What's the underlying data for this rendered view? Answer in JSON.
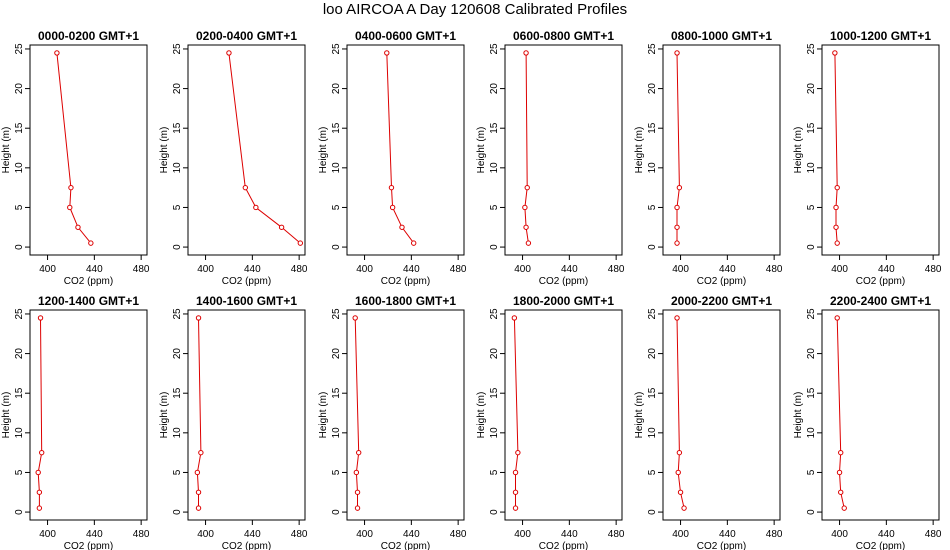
{
  "figure": {
    "title": "loo AIRCOA A  Day 120608  Calibrated Profiles"
  },
  "chart_data": [
    {
      "type": "line",
      "title": "0000-0200 GMT+1",
      "xlabel": "CO2 (ppm)",
      "ylabel": "Height (m)",
      "xlim": [
        385,
        485
      ],
      "ylim": [
        -1,
        25.5
      ],
      "xticks": [
        400,
        440,
        480
      ],
      "yticks": [
        0,
        5,
        10,
        15,
        20,
        25
      ],
      "grid": false,
      "color": "#dd0000",
      "series": [
        {
          "x": [
            437,
            426,
            419,
            420,
            408
          ],
          "y": [
            0.5,
            2.5,
            5,
            7.5,
            24.5
          ]
        }
      ]
    },
    {
      "type": "line",
      "title": "0200-0400 GMT+1",
      "xlabel": "CO2 (ppm)",
      "ylabel": "Height (m)",
      "xlim": [
        385,
        485
      ],
      "ylim": [
        -1,
        25.5
      ],
      "xticks": [
        400,
        440,
        480
      ],
      "yticks": [
        0,
        5,
        10,
        15,
        20,
        25
      ],
      "grid": false,
      "color": "#dd0000",
      "series": [
        {
          "x": [
            481,
            465,
            443,
            434,
            420
          ],
          "y": [
            0.5,
            2.5,
            5,
            7.5,
            24.5
          ]
        }
      ]
    },
    {
      "type": "line",
      "title": "0400-0600 GMT+1",
      "xlabel": "CO2 (ppm)",
      "ylabel": "Height (m)",
      "xlim": [
        385,
        485
      ],
      "ylim": [
        -1,
        25.5
      ],
      "xticks": [
        400,
        440,
        480
      ],
      "yticks": [
        0,
        5,
        10,
        15,
        20,
        25
      ],
      "grid": false,
      "color": "#dd0000",
      "series": [
        {
          "x": [
            442,
            432,
            424,
            423,
            419
          ],
          "y": [
            0.5,
            2.5,
            5,
            7.5,
            24.5
          ]
        }
      ]
    },
    {
      "type": "line",
      "title": "0600-0800 GMT+1",
      "xlabel": "CO2 (ppm)",
      "ylabel": "Height (m)",
      "xlim": [
        385,
        485
      ],
      "ylim": [
        -1,
        25.5
      ],
      "xticks": [
        400,
        440,
        480
      ],
      "yticks": [
        0,
        5,
        10,
        15,
        20,
        25
      ],
      "grid": false,
      "color": "#dd0000",
      "series": [
        {
          "x": [
            405,
            403,
            402,
            404,
            403
          ],
          "y": [
            0.5,
            2.5,
            5,
            7.5,
            24.5
          ]
        }
      ]
    },
    {
      "type": "line",
      "title": "0800-1000 GMT+1",
      "xlabel": "CO2 (ppm)",
      "ylabel": "Height (m)",
      "xlim": [
        385,
        485
      ],
      "ylim": [
        -1,
        25.5
      ],
      "xticks": [
        400,
        440,
        480
      ],
      "yticks": [
        0,
        5,
        10,
        15,
        20,
        25
      ],
      "grid": false,
      "color": "#dd0000",
      "series": [
        {
          "x": [
            397,
            397,
            397,
            399,
            397
          ],
          "y": [
            0.5,
            2.5,
            5,
            7.5,
            24.5
          ]
        }
      ]
    },
    {
      "type": "line",
      "title": "1000-1200 GMT+1",
      "xlabel": "CO2 (ppm)",
      "ylabel": "Height (m)",
      "xlim": [
        385,
        485
      ],
      "ylim": [
        -1,
        25.5
      ],
      "xticks": [
        400,
        440,
        480
      ],
      "yticks": [
        0,
        5,
        10,
        15,
        20,
        25
      ],
      "grid": false,
      "color": "#dd0000",
      "series": [
        {
          "x": [
            398,
            397,
            397,
            398,
            396
          ],
          "y": [
            0.5,
            2.5,
            5,
            7.5,
            24.5
          ]
        }
      ]
    },
    {
      "type": "line",
      "title": "1200-1400 GMT+1",
      "xlabel": "CO2 (ppm)",
      "ylabel": "Height (m)",
      "xlim": [
        385,
        485
      ],
      "ylim": [
        -1,
        25.5
      ],
      "xticks": [
        400,
        440,
        480
      ],
      "yticks": [
        0,
        5,
        10,
        15,
        20,
        25
      ],
      "grid": false,
      "color": "#dd0000",
      "series": [
        {
          "x": [
            393,
            393,
            392,
            395,
            394
          ],
          "y": [
            0.5,
            2.5,
            5,
            7.5,
            24.5
          ]
        }
      ]
    },
    {
      "type": "line",
      "title": "1400-1600 GMT+1",
      "xlabel": "CO2 (ppm)",
      "ylabel": "Height (m)",
      "xlim": [
        385,
        485
      ],
      "ylim": [
        -1,
        25.5
      ],
      "xticks": [
        400,
        440,
        480
      ],
      "yticks": [
        0,
        5,
        10,
        15,
        20,
        25
      ],
      "grid": false,
      "color": "#dd0000",
      "series": [
        {
          "x": [
            394,
            394,
            393,
            396,
            394
          ],
          "y": [
            0.5,
            2.5,
            5,
            7.5,
            24.5
          ]
        }
      ]
    },
    {
      "type": "line",
      "title": "1600-1800 GMT+1",
      "xlabel": "CO2 (ppm)",
      "ylabel": "Height (m)",
      "xlim": [
        385,
        485
      ],
      "ylim": [
        -1,
        25.5
      ],
      "xticks": [
        400,
        440,
        480
      ],
      "yticks": [
        0,
        5,
        10,
        15,
        20,
        25
      ],
      "grid": false,
      "color": "#dd0000",
      "series": [
        {
          "x": [
            394,
            394,
            393,
            395,
            392
          ],
          "y": [
            0.5,
            2.5,
            5,
            7.5,
            24.5
          ]
        }
      ]
    },
    {
      "type": "line",
      "title": "1800-2000 GMT+1",
      "xlabel": "CO2 (ppm)",
      "ylabel": "Height (m)",
      "xlim": [
        385,
        485
      ],
      "ylim": [
        -1,
        25.5
      ],
      "xticks": [
        400,
        440,
        480
      ],
      "yticks": [
        0,
        5,
        10,
        15,
        20,
        25
      ],
      "grid": false,
      "color": "#dd0000",
      "series": [
        {
          "x": [
            394,
            394,
            394,
            396,
            393
          ],
          "y": [
            0.5,
            2.5,
            5,
            7.5,
            24.5
          ]
        }
      ]
    },
    {
      "type": "line",
      "title": "2000-2200 GMT+1",
      "xlabel": "CO2 (ppm)",
      "ylabel": "Height (m)",
      "xlim": [
        385,
        485
      ],
      "ylim": [
        -1,
        25.5
      ],
      "xticks": [
        400,
        440,
        480
      ],
      "yticks": [
        0,
        5,
        10,
        15,
        20,
        25
      ],
      "grid": false,
      "color": "#dd0000",
      "series": [
        {
          "x": [
            403,
            400,
            398,
            399,
            397
          ],
          "y": [
            0.5,
            2.5,
            5,
            7.5,
            24.5
          ]
        }
      ]
    },
    {
      "type": "line",
      "title": "2200-2400 GMT+1",
      "xlabel": "CO2 (ppm)",
      "ylabel": "Height (m)",
      "xlim": [
        385,
        485
      ],
      "ylim": [
        -1,
        25.5
      ],
      "xticks": [
        400,
        440,
        480
      ],
      "yticks": [
        0,
        5,
        10,
        15,
        20,
        25
      ],
      "grid": false,
      "color": "#dd0000",
      "series": [
        {
          "x": [
            404,
            401,
            400,
            401,
            398
          ],
          "y": [
            0.5,
            2.5,
            5,
            7.5,
            24.5
          ]
        }
      ]
    }
  ]
}
